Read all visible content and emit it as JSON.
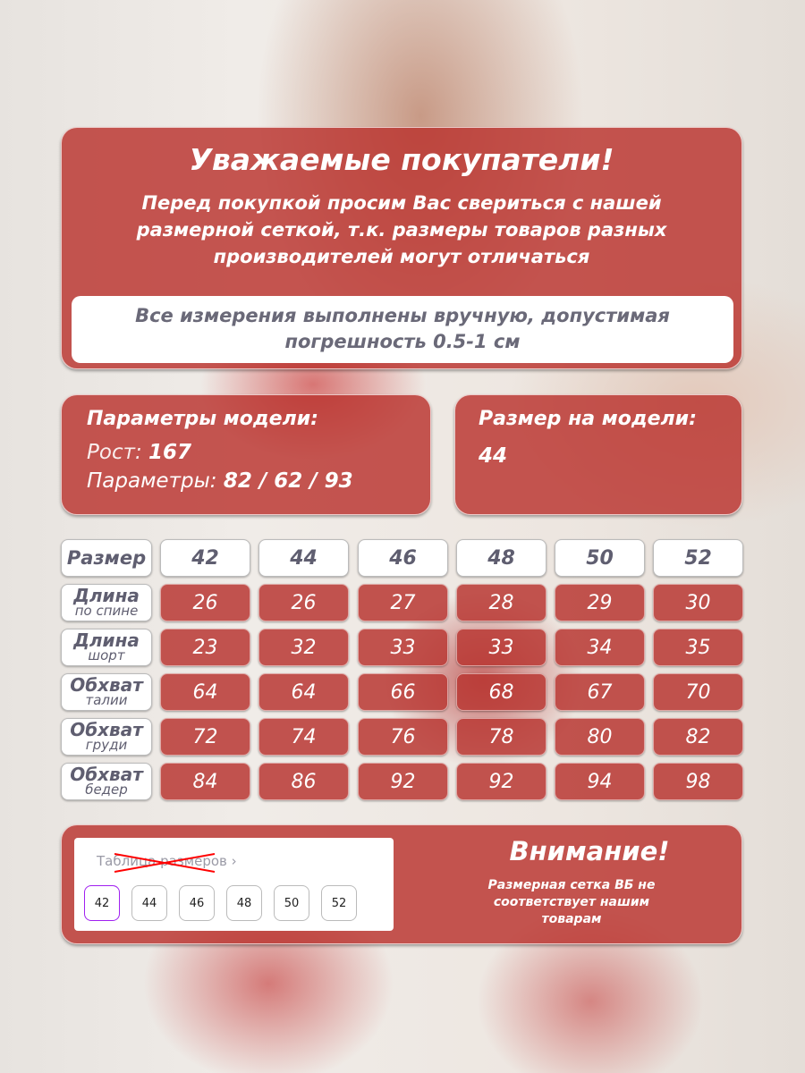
{
  "notice": {
    "title": "Уважаемые покупатели!",
    "text": "Перед покупкой просим Вас свериться с нашей размерной сеткой, т.к. размеры товаров разных производителей могут отличаться",
    "measure": "Все измерения выполнены вручную, допустимая погрешность 0.5-1 см"
  },
  "model": {
    "title": "Параметры модели:",
    "height_label": "Рост:",
    "height_value": "167",
    "params_label": "Параметры:",
    "params_value": "82 / 62 / 93"
  },
  "model_size": {
    "title": "Размер на модели:",
    "value": "44"
  },
  "table": {
    "header_label": "Размер",
    "sizes": [
      "42",
      "44",
      "46",
      "48",
      "50",
      "52"
    ],
    "rows": [
      {
        "main": "Длина",
        "sub": "по спине",
        "values": [
          "26",
          "26",
          "27",
          "28",
          "29",
          "30"
        ]
      },
      {
        "main": "Длина",
        "sub": "шорт",
        "values": [
          "23",
          "32",
          "33",
          "33",
          "34",
          "35"
        ]
      },
      {
        "main": "Обхват",
        "sub": "талии",
        "values": [
          "64",
          "64",
          "66",
          "68",
          "67",
          "70"
        ]
      },
      {
        "main": "Обхват",
        "sub": "груди",
        "values": [
          "72",
          "74",
          "76",
          "78",
          "80",
          "82"
        ]
      },
      {
        "main": "Обхват",
        "sub": "бедер",
        "values": [
          "84",
          "86",
          "92",
          "92",
          "94",
          "98"
        ]
      }
    ]
  },
  "wb": {
    "link": "Таблица размеров",
    "sizes": [
      "42",
      "44",
      "46",
      "48",
      "50",
      "52"
    ],
    "selected": "42",
    "selected_color": "#a020f0"
  },
  "attention": {
    "title": "Внимание!",
    "text": "Размерная сетка ВБ не соответствует нашим товарам"
  }
}
